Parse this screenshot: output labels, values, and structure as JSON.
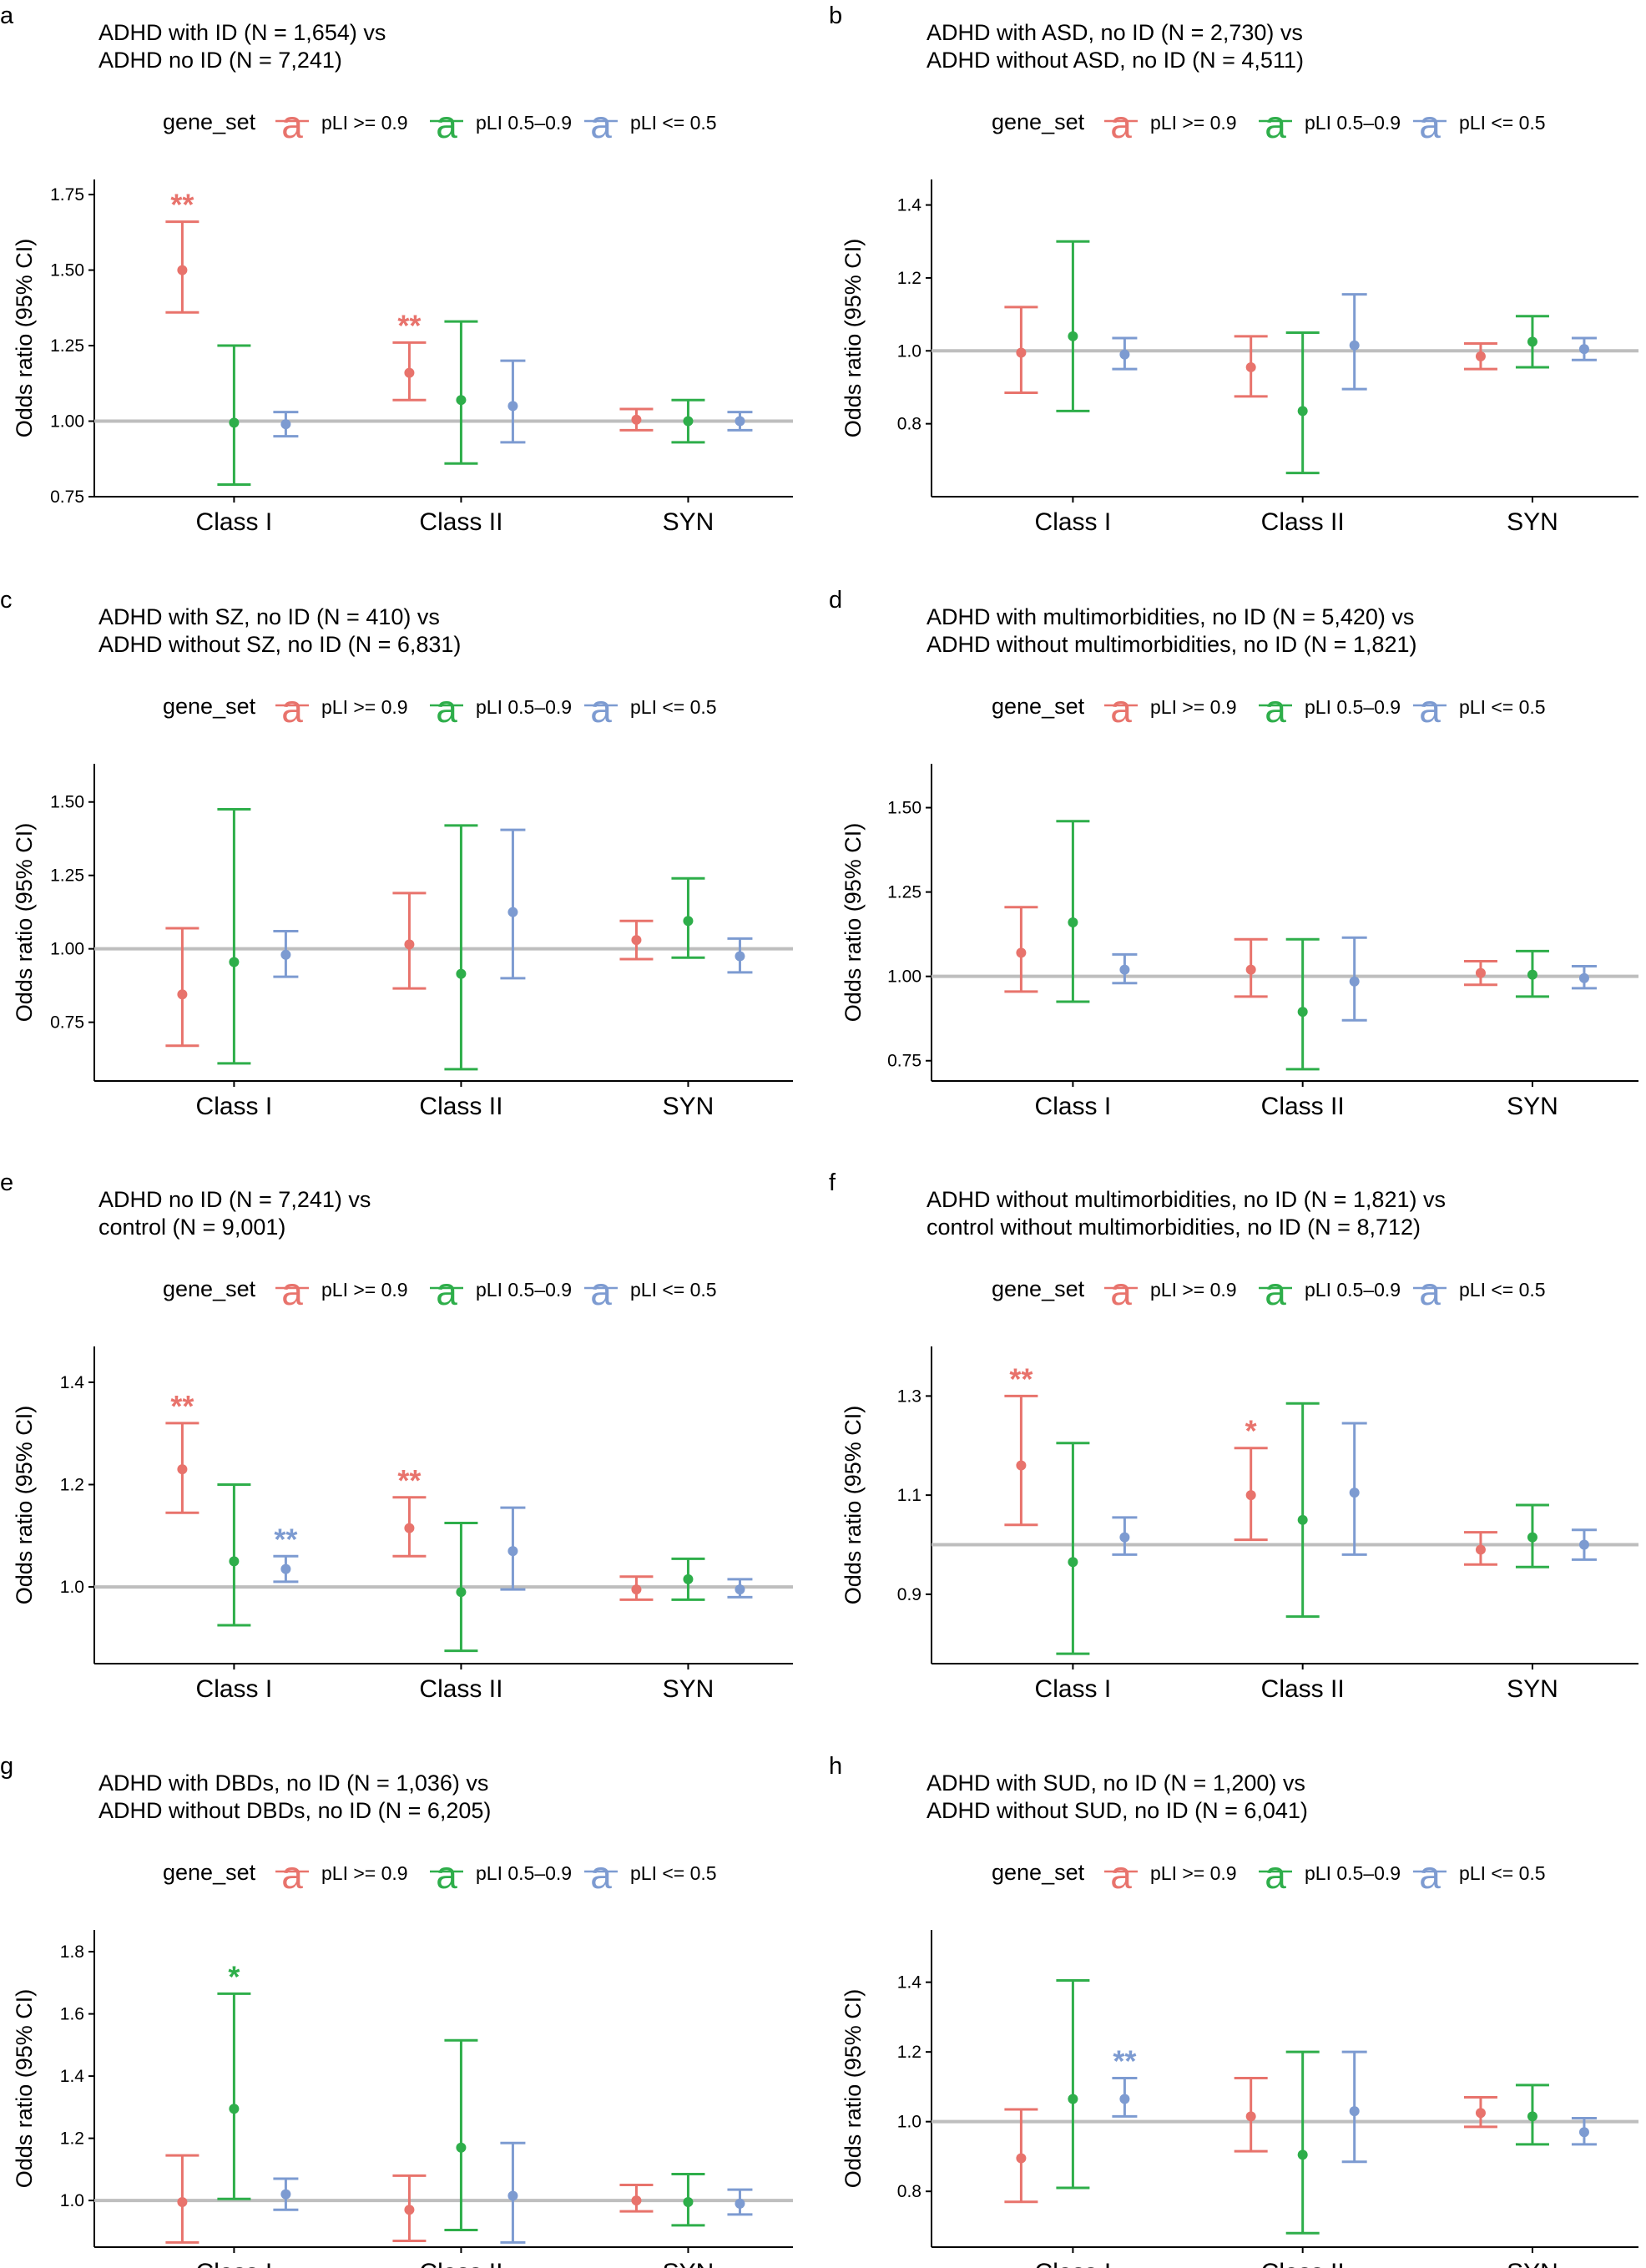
{
  "colors": {
    "high": "#E8736C",
    "mid": "#2EAE4A",
    "low": "#7D9BD1",
    "ref": "#BEBEBE"
  },
  "chart_data": [
    {
      "panel": "a",
      "type": "errorbar",
      "title": [
        "ADHD with ID (N = 1,654) vs",
        "ADHD no ID (N = 7,241)"
      ],
      "ylabel": "Odds ratio (95% CI)",
      "legend_title": "gene_set",
      "legend": [
        "pLI >= 0.9",
        "pLI 0.5–0.9",
        "pLI <= 0.5"
      ],
      "categories": [
        "Class I",
        "Class II",
        "SYN"
      ],
      "ylim": [
        0.75,
        1.8
      ],
      "yticks": [
        0.75,
        1.0,
        1.25,
        1.5,
        1.75
      ],
      "ytick_labels": [
        "0.75",
        "1.00",
        "1.25",
        "1.50",
        "1.75"
      ],
      "reference": 1.0,
      "series": [
        {
          "name": "pLI >= 0.9",
          "or": [
            1.5,
            1.16,
            1.005
          ],
          "lo": [
            1.36,
            1.07,
            0.97
          ],
          "hi": [
            1.66,
            1.26,
            1.04
          ],
          "stars": [
            "**",
            "**",
            ""
          ]
        },
        {
          "name": "pLI 0.5–0.9",
          "or": [
            0.995,
            1.07,
            1.0
          ],
          "lo": [
            0.79,
            0.86,
            0.93
          ],
          "hi": [
            1.25,
            1.33,
            1.07
          ],
          "stars": [
            "",
            "",
            ""
          ]
        },
        {
          "name": "pLI <= 0.5",
          "or": [
            0.99,
            1.05,
            1.0
          ],
          "lo": [
            0.95,
            0.93,
            0.97
          ],
          "hi": [
            1.03,
            1.2,
            1.03
          ],
          "stars": [
            "",
            "",
            ""
          ]
        }
      ]
    },
    {
      "panel": "b",
      "type": "errorbar",
      "title": [
        "ADHD with ASD, no ID (N = 2,730) vs",
        "ADHD without ASD, no ID (N = 4,511)"
      ],
      "ylabel": "Odds ratio (95% CI)",
      "legend_title": "gene_set",
      "legend": [
        "pLI >= 0.9",
        "pLI 0.5–0.9",
        "pLI <= 0.5"
      ],
      "categories": [
        "Class I",
        "Class II",
        "SYN"
      ],
      "ylim": [
        0.6,
        1.47
      ],
      "yticks": [
        0.8,
        1.0,
        1.2,
        1.4
      ],
      "ytick_labels": [
        "0.8",
        "1.0",
        "1.2",
        "1.4"
      ],
      "reference": 1.0,
      "series": [
        {
          "name": "pLI >= 0.9",
          "or": [
            0.995,
            0.955,
            0.985
          ],
          "lo": [
            0.885,
            0.875,
            0.95
          ],
          "hi": [
            1.12,
            1.04,
            1.02
          ],
          "stars": [
            "",
            "",
            ""
          ]
        },
        {
          "name": "pLI 0.5–0.9",
          "or": [
            1.04,
            0.835,
            1.025
          ],
          "lo": [
            0.835,
            0.665,
            0.955
          ],
          "hi": [
            1.3,
            1.05,
            1.095
          ],
          "stars": [
            "",
            "",
            ""
          ]
        },
        {
          "name": "pLI <= 0.5",
          "or": [
            0.99,
            1.015,
            1.005
          ],
          "lo": [
            0.95,
            0.895,
            0.975
          ],
          "hi": [
            1.035,
            1.155,
            1.035
          ],
          "stars": [
            "",
            "",
            ""
          ]
        }
      ]
    },
    {
      "panel": "c",
      "type": "errorbar",
      "title": [
        "ADHD with SZ, no ID (N = 410) vs",
        "ADHD without SZ, no ID (N = 6,831)"
      ],
      "ylabel": "Odds ratio (95% CI)",
      "legend_title": "gene_set",
      "legend": [
        "pLI >= 0.9",
        "pLI 0.5–0.9",
        "pLI <= 0.5"
      ],
      "categories": [
        "Class I",
        "Class II",
        "SYN"
      ],
      "ylim": [
        0.55,
        1.63
      ],
      "yticks": [
        0.75,
        1.0,
        1.25,
        1.5
      ],
      "ytick_labels": [
        "0.75",
        "1.00",
        "1.25",
        "1.50"
      ],
      "reference": 1.0,
      "series": [
        {
          "name": "pLI >= 0.9",
          "or": [
            0.845,
            1.015,
            1.03
          ],
          "lo": [
            0.67,
            0.865,
            0.965
          ],
          "hi": [
            1.07,
            1.19,
            1.095
          ],
          "stars": [
            "",
            "",
            ""
          ]
        },
        {
          "name": "pLI 0.5–0.9",
          "or": [
            0.955,
            0.915,
            1.095
          ],
          "lo": [
            0.61,
            0.59,
            0.97
          ],
          "hi": [
            1.475,
            1.42,
            1.24
          ],
          "stars": [
            "",
            "",
            ""
          ]
        },
        {
          "name": "pLI <= 0.5",
          "or": [
            0.98,
            1.125,
            0.975
          ],
          "lo": [
            0.905,
            0.9,
            0.92
          ],
          "hi": [
            1.06,
            1.405,
            1.035
          ],
          "stars": [
            "",
            "",
            ""
          ]
        }
      ]
    },
    {
      "panel": "d",
      "type": "errorbar",
      "title": [
        "ADHD with multimorbidities, no ID (N = 5,420) vs",
        "ADHD without multimorbidities, no ID (N = 1,821)"
      ],
      "ylabel": "Odds ratio (95% CI)",
      "legend_title": "gene_set",
      "legend": [
        "pLI >= 0.9",
        "pLI 0.5–0.9",
        "pLI <= 0.5"
      ],
      "categories": [
        "Class I",
        "Class II",
        "SYN"
      ],
      "ylim": [
        0.69,
        1.63
      ],
      "yticks": [
        0.75,
        1.0,
        1.25,
        1.5
      ],
      "ytick_labels": [
        "0.75",
        "1.00",
        "1.25",
        "1.50"
      ],
      "reference": 1.0,
      "series": [
        {
          "name": "pLI >= 0.9",
          "or": [
            1.07,
            1.02,
            1.01
          ],
          "lo": [
            0.955,
            0.94,
            0.975
          ],
          "hi": [
            1.205,
            1.11,
            1.045
          ],
          "stars": [
            "",
            "",
            ""
          ]
        },
        {
          "name": "pLI 0.5–0.9",
          "or": [
            1.16,
            0.895,
            1.005
          ],
          "lo": [
            0.925,
            0.725,
            0.94
          ],
          "hi": [
            1.46,
            1.11,
            1.075
          ],
          "stars": [
            "",
            "",
            ""
          ]
        },
        {
          "name": "pLI <= 0.5",
          "or": [
            1.02,
            0.985,
            0.995
          ],
          "lo": [
            0.98,
            0.87,
            0.965
          ],
          "hi": [
            1.065,
            1.115,
            1.03
          ],
          "stars": [
            "",
            "",
            ""
          ]
        }
      ]
    },
    {
      "panel": "e",
      "type": "errorbar",
      "title": [
        "ADHD no ID (N = 7,241) vs",
        "control (N = 9,001)"
      ],
      "ylabel": "Odds ratio (95% CI)",
      "legend_title": "gene_set",
      "legend": [
        "pLI >= 0.9",
        "pLI 0.5–0.9",
        "pLI <= 0.5"
      ],
      "categories": [
        "Class I",
        "Class II",
        "SYN"
      ],
      "ylim": [
        0.85,
        1.47
      ],
      "yticks": [
        1.0,
        1.2,
        1.4
      ],
      "ytick_labels": [
        "1.0",
        "1.2",
        "1.4"
      ],
      "reference": 1.0,
      "series": [
        {
          "name": "pLI >= 0.9",
          "or": [
            1.23,
            1.115,
            0.995
          ],
          "lo": [
            1.145,
            1.06,
            0.975
          ],
          "hi": [
            1.32,
            1.175,
            1.02
          ],
          "stars": [
            "**",
            "**",
            ""
          ]
        },
        {
          "name": "pLI 0.5–0.9",
          "or": [
            1.05,
            0.99,
            1.015
          ],
          "lo": [
            0.925,
            0.875,
            0.975
          ],
          "hi": [
            1.2,
            1.125,
            1.055
          ],
          "stars": [
            "",
            "",
            ""
          ]
        },
        {
          "name": "pLI <= 0.5",
          "or": [
            1.035,
            1.07,
            0.995
          ],
          "lo": [
            1.01,
            0.995,
            0.98
          ],
          "hi": [
            1.06,
            1.155,
            1.015
          ],
          "stars": [
            "**",
            "",
            ""
          ]
        }
      ]
    },
    {
      "panel": "f",
      "type": "errorbar",
      "title": [
        "ADHD without multimorbidities, no ID (N = 1,821) vs",
        "control without multimorbidities, no ID (N = 8,712)"
      ],
      "ylabel": "Odds ratio (95% CI)",
      "legend_title": "gene_set",
      "legend": [
        "pLI >= 0.9",
        "pLI 0.5–0.9",
        "pLI <= 0.5"
      ],
      "categories": [
        "Class I",
        "Class II",
        "SYN"
      ],
      "ylim": [
        0.76,
        1.4
      ],
      "yticks": [
        0.9,
        1.1,
        1.3
      ],
      "ytick_labels": [
        "0.9",
        "1.1",
        "1.3"
      ],
      "reference": 1.0,
      "series": [
        {
          "name": "pLI >= 0.9",
          "or": [
            1.16,
            1.1,
            0.99
          ],
          "lo": [
            1.04,
            1.01,
            0.96
          ],
          "hi": [
            1.3,
            1.195,
            1.025
          ],
          "stars": [
            "**",
            "*",
            ""
          ]
        },
        {
          "name": "pLI 0.5–0.9",
          "or": [
            0.965,
            1.05,
            1.015
          ],
          "lo": [
            0.78,
            0.855,
            0.955
          ],
          "hi": [
            1.205,
            1.285,
            1.08
          ],
          "stars": [
            "",
            "",
            ""
          ]
        },
        {
          "name": "pLI <= 0.5",
          "or": [
            1.015,
            1.105,
            1.0
          ],
          "lo": [
            0.98,
            0.98,
            0.97
          ],
          "hi": [
            1.055,
            1.245,
            1.03
          ],
          "stars": [
            "",
            "",
            ""
          ]
        }
      ]
    },
    {
      "panel": "g",
      "type": "errorbar",
      "title": [
        "ADHD with DBDs, no ID (N = 1,036) vs",
        "ADHD without DBDs, no ID (N = 6,205)"
      ],
      "ylabel": "Odds ratio (95% CI)",
      "legend_title": "gene_set",
      "legend": [
        "pLI >= 0.9",
        "pLI 0.5–0.9",
        "pLI <= 0.5"
      ],
      "categories": [
        "Class I",
        "Class II",
        "SYN"
      ],
      "ylim": [
        0.85,
        1.87
      ],
      "yticks": [
        1.0,
        1.2,
        1.4,
        1.6,
        1.8
      ],
      "ytick_labels": [
        "1.0",
        "1.2",
        "1.4",
        "1.6",
        "1.8"
      ],
      "reference": 1.0,
      "series": [
        {
          "name": "pLI >= 0.9",
          "or": [
            0.995,
            0.97,
            1.0
          ],
          "lo": [
            0.865,
            0.87,
            0.965
          ],
          "hi": [
            1.145,
            1.08,
            1.05
          ],
          "stars": [
            "",
            "",
            ""
          ]
        },
        {
          "name": "pLI 0.5–0.9",
          "or": [
            1.295,
            1.17,
            0.995
          ],
          "lo": [
            1.005,
            0.905,
            0.92
          ],
          "hi": [
            1.665,
            1.515,
            1.085
          ],
          "stars": [
            "*",
            "",
            ""
          ]
        },
        {
          "name": "pLI <= 0.5",
          "or": [
            1.02,
            1.015,
            0.99
          ],
          "lo": [
            0.97,
            0.865,
            0.955
          ],
          "hi": [
            1.07,
            1.185,
            1.035
          ],
          "stars": [
            "",
            "",
            ""
          ]
        }
      ]
    },
    {
      "panel": "h",
      "type": "errorbar",
      "title": [
        "ADHD with SUD, no ID (N = 1,200) vs",
        "ADHD without SUD, no ID (N = 6,041)"
      ],
      "ylabel": "Odds ratio (95% CI)",
      "legend_title": "gene_set",
      "legend": [
        "pLI >= 0.9",
        "pLI 0.5–0.9",
        "pLI <= 0.5"
      ],
      "categories": [
        "Class I",
        "Class II",
        "SYN"
      ],
      "ylim": [
        0.64,
        1.55
      ],
      "yticks": [
        0.8,
        1.0,
        1.2,
        1.4
      ],
      "ytick_labels": [
        "0.8",
        "1.0",
        "1.2",
        "1.4"
      ],
      "reference": 1.0,
      "series": [
        {
          "name": "pLI >= 0.9",
          "or": [
            0.895,
            1.015,
            1.025
          ],
          "lo": [
            0.77,
            0.915,
            0.985
          ],
          "hi": [
            1.035,
            1.125,
            1.07
          ],
          "stars": [
            "",
            "",
            ""
          ]
        },
        {
          "name": "pLI 0.5–0.9",
          "or": [
            1.065,
            0.905,
            1.015
          ],
          "lo": [
            0.81,
            0.68,
            0.935
          ],
          "hi": [
            1.405,
            1.2,
            1.105
          ],
          "stars": [
            "",
            "",
            ""
          ]
        },
        {
          "name": "pLI <= 0.5",
          "or": [
            1.065,
            1.03,
            0.97
          ],
          "lo": [
            1.015,
            0.885,
            0.935
          ],
          "hi": [
            1.125,
            1.2,
            1.01
          ],
          "stars": [
            "**",
            "",
            ""
          ]
        }
      ]
    }
  ]
}
